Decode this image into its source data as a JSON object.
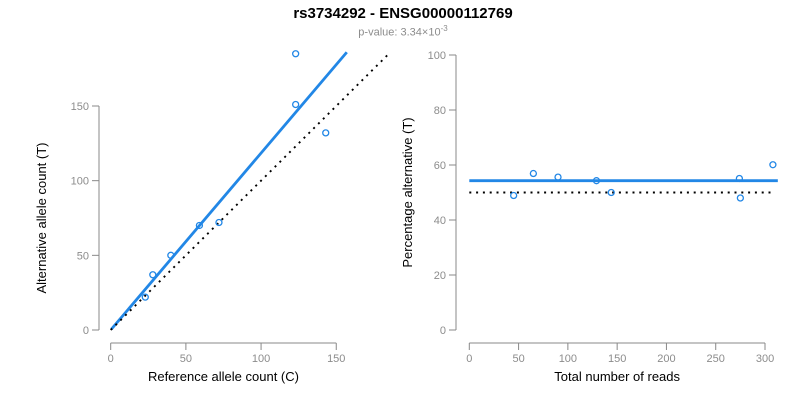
{
  "header": {
    "title": "rs3734292 - ENSG00000112769",
    "pvalue_prefix": "p-value: 3.34×10",
    "pvalue_exponent": "-3"
  },
  "colors": {
    "series_blue": "#2287E6",
    "reference_black": "#000000",
    "axis_line": "#888888",
    "tick_text": "#8C8C8C",
    "label_text": "#000000",
    "subtitle_text": "#8C8C8C"
  },
  "chart_data": [
    {
      "type": "scatter",
      "panel": "left",
      "xlabel": "Reference allele count (C)",
      "ylabel": "Alternative allele count (T)",
      "xlim": [
        0,
        185
      ],
      "ylim": [
        0,
        186
      ],
      "xticks": [
        0,
        50,
        100,
        150
      ],
      "yticks": [
        0,
        50,
        100,
        150
      ],
      "grid": false,
      "legend": "none",
      "points": [
        [
          23,
          22
        ],
        [
          28,
          37
        ],
        [
          40,
          50
        ],
        [
          59,
          70
        ],
        [
          72,
          72
        ],
        [
          123,
          151
        ],
        [
          143,
          132
        ],
        [
          123,
          185
        ]
      ],
      "lines": [
        {
          "name": "regression-line",
          "style": "solid",
          "color": "blue",
          "from": [
            0.4,
            0.5
          ],
          "to": [
            157,
            186
          ]
        },
        {
          "name": "identity-line",
          "style": "dotted",
          "color": "black",
          "from": [
            0,
            0
          ],
          "to": [
            184,
            184
          ]
        }
      ]
    },
    {
      "type": "scatter",
      "panel": "right",
      "xlabel": "Total number of reads",
      "ylabel": "Percentage alternative (T)",
      "xlim": [
        0,
        313
      ],
      "ylim": [
        0,
        101
      ],
      "xticks": [
        0,
        50,
        100,
        150,
        200,
        250,
        300
      ],
      "yticks": [
        0,
        20,
        40,
        60,
        80,
        100
      ],
      "grid": false,
      "legend": "none",
      "points": [
        [
          45,
          48.9
        ],
        [
          65,
          56.9
        ],
        [
          90,
          55.6
        ],
        [
          129,
          54.3
        ],
        [
          144,
          50
        ],
        [
          274,
          55.1
        ],
        [
          275,
          48
        ],
        [
          308,
          60.1
        ]
      ],
      "lines": [
        {
          "name": "mean-percentage-line",
          "style": "solid",
          "color": "blue",
          "from": [
            0,
            54.3
          ],
          "to": [
            313,
            54.3
          ]
        },
        {
          "name": "expected-50-percent-line",
          "style": "dotted",
          "color": "black",
          "from": [
            0,
            50
          ],
          "to": [
            307,
            50
          ]
        }
      ]
    }
  ]
}
